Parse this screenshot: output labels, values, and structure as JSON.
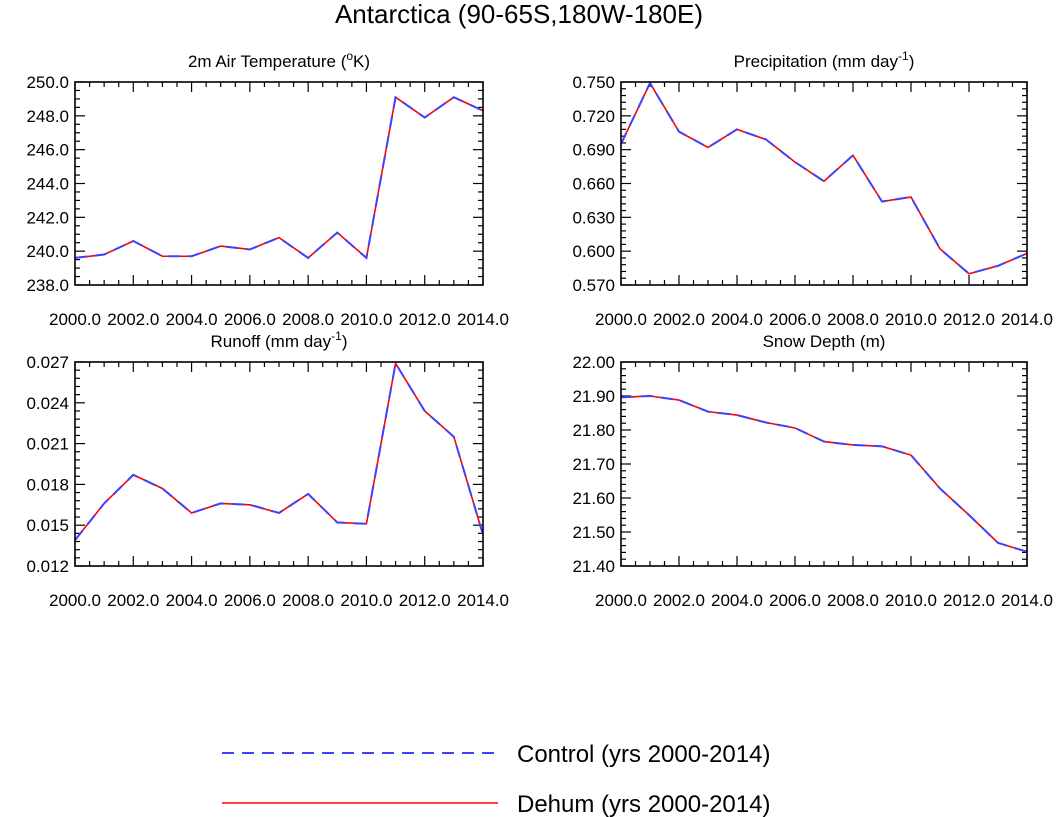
{
  "figure_title": "Antarctica (90-65S,180W-180E)",
  "legend": [
    {
      "label": "Control (yrs 2000-2014)",
      "color": "#4040ff",
      "style": "dashed"
    },
    {
      "label": "Dehum (yrs 2000-2014)",
      "color": "#ff0000",
      "style": "solid"
    }
  ],
  "chart_data": [
    {
      "type": "line",
      "title": "2m Air Temperature (oK)",
      "title_main": "2m Air Temperature (",
      "title_sup": "o",
      "title_end": "K)",
      "x": [
        2000,
        2001,
        2002,
        2003,
        2004,
        2005,
        2006,
        2007,
        2008,
        2009,
        2010,
        2011,
        2012,
        2013,
        2014
      ],
      "xlim": [
        2000,
        2014
      ],
      "xticks": [
        2000,
        2002,
        2004,
        2006,
        2008,
        2010,
        2012,
        2014
      ],
      "xtick_labels": [
        "2000.0",
        "2002.0",
        "2004.0",
        "2006.0",
        "2008.0",
        "2010.0",
        "2012.0",
        "2014.0"
      ],
      "ylim": [
        238.0,
        250.0
      ],
      "yticks": [
        238.0,
        240.0,
        242.0,
        244.0,
        246.0,
        248.0,
        250.0
      ],
      "ytick_labels": [
        "238.0",
        "240.0",
        "242.0",
        "244.0",
        "246.0",
        "248.0",
        "250.0"
      ],
      "y_minor_step": 0.5,
      "series": [
        {
          "name": "Control (yrs 2000-2014)",
          "values": [
            239.6,
            239.8,
            240.6,
            239.7,
            239.7,
            240.3,
            240.1,
            240.8,
            239.6,
            241.1,
            239.6,
            249.1,
            247.9,
            249.1,
            248.3
          ]
        },
        {
          "name": "Dehum (yrs 2000-2014)",
          "values": [
            239.6,
            239.8,
            240.6,
            239.7,
            239.7,
            240.3,
            240.1,
            240.8,
            239.6,
            241.1,
            239.6,
            249.1,
            247.9,
            249.1,
            248.3
          ]
        }
      ]
    },
    {
      "type": "line",
      "title": "Precipitation (mm day-1)",
      "title_main": "Precipitation (mm day",
      "title_sup": "-1",
      "title_end": ")",
      "x": [
        2000,
        2001,
        2002,
        2003,
        2004,
        2005,
        2006,
        2007,
        2008,
        2009,
        2010,
        2011,
        2012,
        2013,
        2014
      ],
      "xlim": [
        2000,
        2014
      ],
      "xticks": [
        2000,
        2002,
        2004,
        2006,
        2008,
        2010,
        2012,
        2014
      ],
      "xtick_labels": [
        "2000.0",
        "2002.0",
        "2004.0",
        "2006.0",
        "2008.0",
        "2010.0",
        "2012.0",
        "2014.0"
      ],
      "ylim": [
        0.57,
        0.75
      ],
      "yticks": [
        0.57,
        0.6,
        0.63,
        0.66,
        0.69,
        0.72,
        0.75
      ],
      "ytick_labels": [
        "0.570",
        "0.600",
        "0.630",
        "0.660",
        "0.690",
        "0.720",
        "0.750"
      ],
      "y_minor_step": 0.006,
      "series": [
        {
          "name": "Control (yrs 2000-2014)",
          "values": [
            0.695,
            0.749,
            0.706,
            0.692,
            0.708,
            0.699,
            0.679,
            0.662,
            0.685,
            0.644,
            0.648,
            0.602,
            0.58,
            0.587,
            0.598
          ]
        },
        {
          "name": "Dehum (yrs 2000-2014)",
          "values": [
            0.695,
            0.749,
            0.706,
            0.692,
            0.708,
            0.699,
            0.679,
            0.662,
            0.685,
            0.644,
            0.648,
            0.602,
            0.58,
            0.587,
            0.598
          ]
        }
      ]
    },
    {
      "type": "line",
      "title": "Runoff (mm day-1)",
      "title_main": "Runoff (mm day",
      "title_sup": "-1",
      "title_end": ")",
      "x": [
        2000,
        2001,
        2002,
        2003,
        2004,
        2005,
        2006,
        2007,
        2008,
        2009,
        2010,
        2011,
        2012,
        2013,
        2014
      ],
      "xlim": [
        2000,
        2014
      ],
      "xticks": [
        2000,
        2002,
        2004,
        2006,
        2008,
        2010,
        2012,
        2014
      ],
      "xtick_labels": [
        "2000.0",
        "2002.0",
        "2004.0",
        "2006.0",
        "2008.0",
        "2010.0",
        "2012.0",
        "2014.0"
      ],
      "ylim": [
        0.012,
        0.027
      ],
      "yticks": [
        0.012,
        0.015,
        0.018,
        0.021,
        0.024,
        0.027
      ],
      "ytick_labels": [
        "0.012",
        "0.015",
        "0.018",
        "0.021",
        "0.024",
        "0.027"
      ],
      "y_minor_step": 0.0006,
      "series": [
        {
          "name": "Control (yrs 2000-2014)",
          "values": [
            0.0139,
            0.0166,
            0.0187,
            0.0177,
            0.0159,
            0.0166,
            0.0165,
            0.0159,
            0.0173,
            0.0152,
            0.0151,
            0.0269,
            0.0234,
            0.0215,
            0.0143
          ]
        },
        {
          "name": "Dehum (yrs 2000-2014)",
          "values": [
            0.0139,
            0.0166,
            0.0187,
            0.0177,
            0.0159,
            0.0166,
            0.0165,
            0.0159,
            0.0173,
            0.0152,
            0.0151,
            0.0269,
            0.0234,
            0.0215,
            0.0143
          ]
        }
      ]
    },
    {
      "type": "line",
      "title": "Snow Depth (m)",
      "title_main": "Snow Depth (m)",
      "title_sup": "",
      "title_end": "",
      "x": [
        2000,
        2001,
        2002,
        2003,
        2004,
        2005,
        2006,
        2007,
        2008,
        2009,
        2010,
        2011,
        2012,
        2013,
        2014
      ],
      "xlim": [
        2000,
        2014
      ],
      "xticks": [
        2000,
        2002,
        2004,
        2006,
        2008,
        2010,
        2012,
        2014
      ],
      "xtick_labels": [
        "2000.0",
        "2002.0",
        "2004.0",
        "2006.0",
        "2008.0",
        "2010.0",
        "2012.0",
        "2014.0"
      ],
      "ylim": [
        21.4,
        22.0
      ],
      "yticks": [
        21.4,
        21.5,
        21.6,
        21.7,
        21.8,
        21.9,
        22.0
      ],
      "ytick_labels": [
        "21.40",
        "21.50",
        "21.60",
        "21.70",
        "21.80",
        "21.90",
        "22.00"
      ],
      "y_minor_step": 0.02,
      "series": [
        {
          "name": "Control (yrs 2000-2014)",
          "values": [
            21.896,
            21.9,
            21.888,
            21.854,
            21.844,
            21.822,
            21.806,
            21.766,
            21.756,
            21.752,
            21.726,
            21.628,
            21.55,
            21.468,
            21.442
          ]
        },
        {
          "name": "Dehum (yrs 2000-2014)",
          "values": [
            21.896,
            21.9,
            21.888,
            21.854,
            21.844,
            21.822,
            21.806,
            21.766,
            21.756,
            21.752,
            21.726,
            21.628,
            21.55,
            21.468,
            21.442
          ]
        }
      ]
    }
  ]
}
